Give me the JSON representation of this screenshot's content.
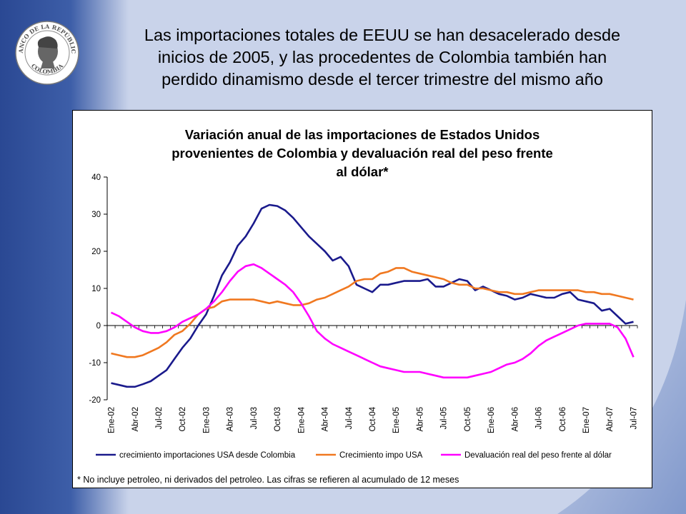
{
  "slide": {
    "title": "Las importaciones totales de EEUU se han desacelerado desde inicios de 2005, y las procedentes de Colombia también han perdido dinamismo desde el tercer trimestre del mismo año",
    "title_lines": [
      "Las importaciones totales de EEUU se han desacelerado desde",
      "inicios de 2005, y las procedentes de Colombia también han",
      "perdido dinamismo desde el tercer trimestre del mismo año"
    ],
    "logo": {
      "name": "banco-de-la-republica-seal",
      "text_top": "BANCO DE LA REPÚBLICA",
      "text_bottom": "COLOMBIA"
    },
    "colors": {
      "sidebar": "#2f4f9a",
      "background": "#c9d3ea"
    }
  },
  "footnote": "* No incluye petroleo, ni derivados del petroleo. Las cifras se refieren al acumulado de 12 meses",
  "chart_data": {
    "type": "line",
    "title": "Variación anual de las importaciones de Estados Unidos provenientes de Colombia y devaluación real del peso frente al dólar*",
    "title_lines": [
      "Variación anual de las importaciones de Estados Unidos",
      "provenientes de Colombia y devaluación real del peso frente",
      "al dólar*"
    ],
    "xlabel": "",
    "ylabel": "",
    "ylim": [
      -20,
      40
    ],
    "yticks": [
      -20,
      -10,
      0,
      10,
      20,
      30,
      40
    ],
    "x_start": "Ene-02",
    "x_end": "Jul-07",
    "x_tick_labels": [
      "Ene-02",
      "Abr-02",
      "Jul-02",
      "Oct-02",
      "Ene-03",
      "Abr-03",
      "Jul-03",
      "Oct-03",
      "Ene-04",
      "Abr-04",
      "Jul-04",
      "Oct-04",
      "Ene-05",
      "Abr-05",
      "Jul-05",
      "Oct-05",
      "Ene-06",
      "Abr-06",
      "Jul-06",
      "Oct-06",
      "Ene-07",
      "Abr-07",
      "Jul-07"
    ],
    "grid": false,
    "legend_position": "bottom",
    "series": [
      {
        "name": "crecimiento importaciones USA desde Colombia",
        "color": "#1a1a8c",
        "values": [
          -15.5,
          -16.0,
          -16.5,
          -16.5,
          -15.8,
          -15.0,
          -13.5,
          -12.0,
          -9.0,
          -6.0,
          -3.5,
          0.0,
          3.0,
          8.0,
          13.5,
          17.0,
          21.5,
          24.0,
          27.5,
          31.5,
          32.5,
          32.2,
          31.0,
          29.0,
          26.5,
          24.0,
          22.0,
          20.0,
          17.5,
          18.5,
          16.0,
          11.0,
          10.0,
          9.0,
          11.0,
          11.0,
          11.5,
          12.0,
          12.0,
          12.0,
          12.5,
          10.5,
          10.5,
          11.5,
          12.5,
          12.0,
          9.5,
          10.5,
          9.5,
          8.5,
          8.0,
          7.0,
          7.5,
          8.5,
          8.0,
          7.5,
          7.5,
          8.5,
          9.0,
          7.0,
          6.5,
          6.0,
          4.0,
          4.5,
          2.5,
          0.5,
          1.0
        ]
      },
      {
        "name": "Crecimiento impo USA",
        "color": "#f07820",
        "values": [
          -7.5,
          -8.0,
          -8.5,
          -8.5,
          -8.0,
          -7.0,
          -6.0,
          -4.5,
          -2.5,
          -1.5,
          0.5,
          3.0,
          4.5,
          5.0,
          6.5,
          7.0,
          7.0,
          7.0,
          7.0,
          6.5,
          6.0,
          6.5,
          6.0,
          5.5,
          5.5,
          6.0,
          7.0,
          7.5,
          8.5,
          9.5,
          10.5,
          12.0,
          12.5,
          12.5,
          14.0,
          14.5,
          15.5,
          15.5,
          14.5,
          14.0,
          13.5,
          13.0,
          12.5,
          11.5,
          11.0,
          11.0,
          10.0,
          10.0,
          9.5,
          9.0,
          9.0,
          8.5,
          8.5,
          9.0,
          9.5,
          9.5,
          9.5,
          9.5,
          9.5,
          9.5,
          9.0,
          9.0,
          8.5,
          8.5,
          8.0,
          7.5,
          7.0
        ]
      },
      {
        "name": "Devaluación real del peso frente al dólar",
        "color": "#ff00ff",
        "values": [
          3.5,
          2.5,
          1.0,
          -0.5,
          -1.5,
          -2.0,
          -2.0,
          -1.5,
          -0.5,
          1.0,
          2.0,
          3.0,
          4.5,
          6.5,
          9.0,
          12.0,
          14.5,
          16.0,
          16.5,
          15.5,
          14.0,
          12.5,
          11.0,
          9.0,
          6.0,
          2.5,
          -1.5,
          -3.5,
          -5.0,
          -6.0,
          -7.0,
          -8.0,
          -9.0,
          -10.0,
          -11.0,
          -11.5,
          -12.0,
          -12.5,
          -12.5,
          -12.5,
          -13.0,
          -13.5,
          -14.0,
          -14.0,
          -14.0,
          -14.0,
          -13.5,
          -13.0,
          -12.5,
          -11.5,
          -10.5,
          -10.0,
          -9.0,
          -7.5,
          -5.5,
          -4.0,
          -3.0,
          -2.0,
          -1.0,
          0.0,
          0.5,
          0.5,
          0.5,
          0.5,
          -0.5,
          -3.5,
          -8.5
        ]
      }
    ]
  }
}
